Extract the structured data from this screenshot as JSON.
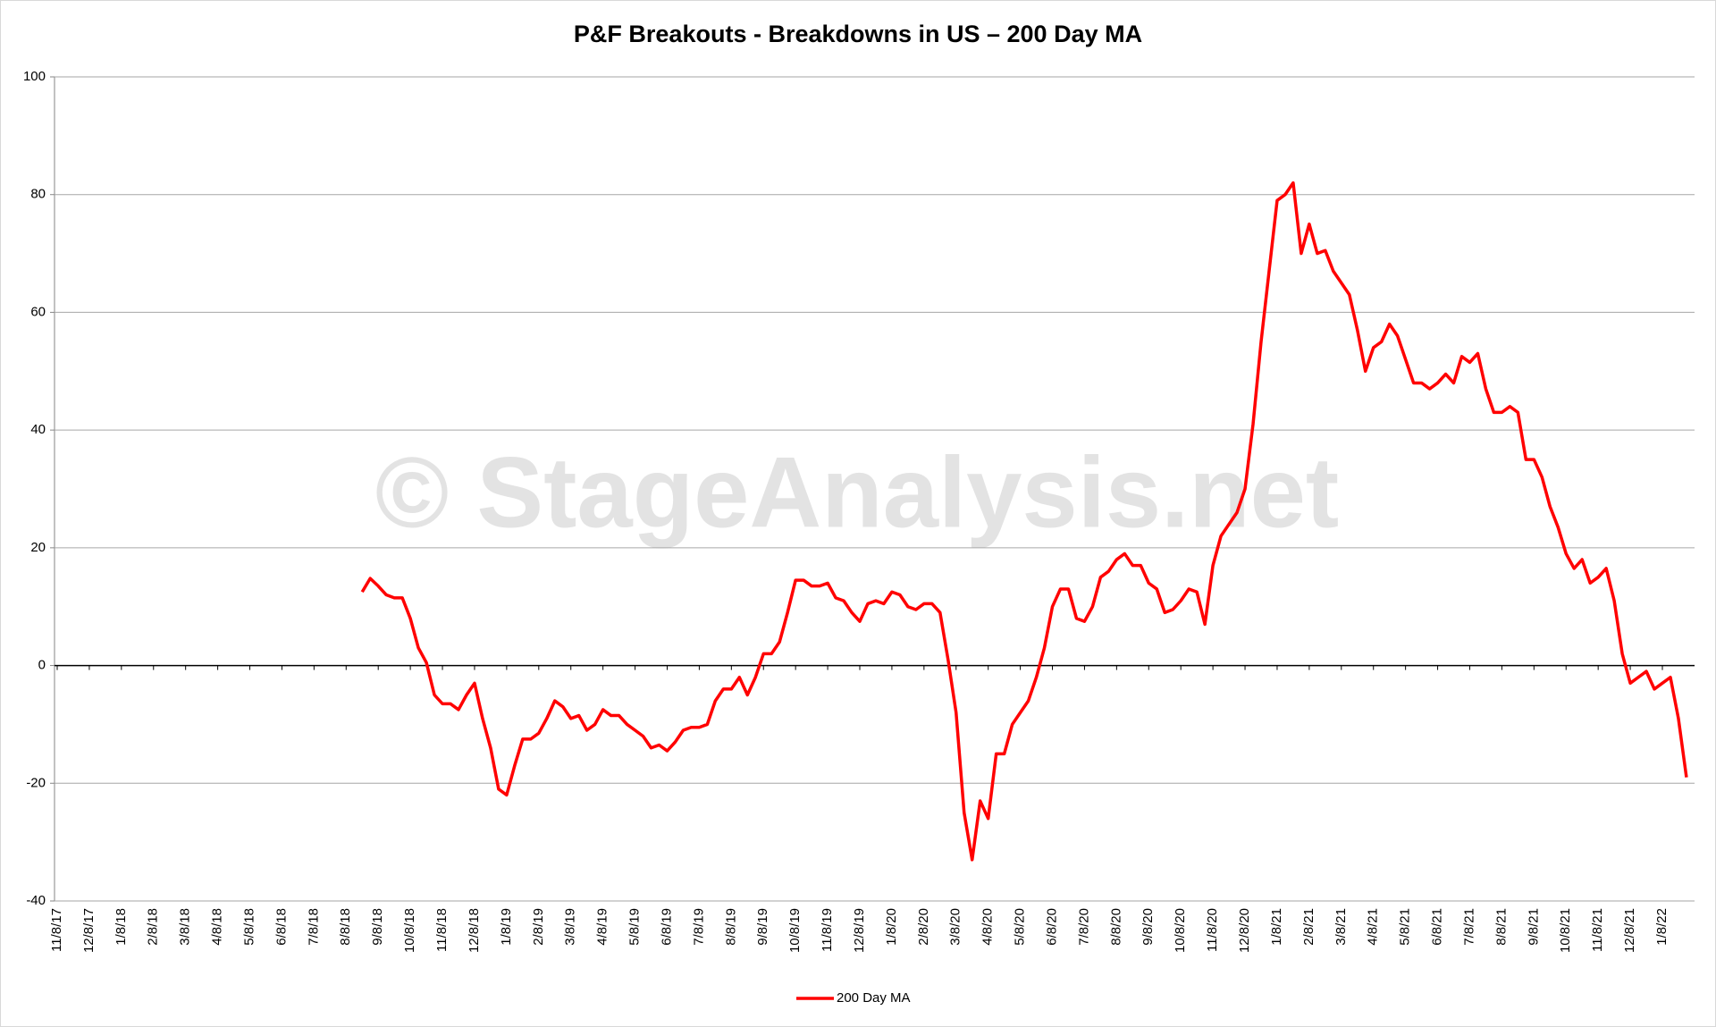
{
  "chart_data": {
    "type": "line",
    "title": "P&F Breakouts - Breakdowns in US – 200 Day MA",
    "watermark": "© StageAnalysis.net",
    "categories": [
      "11/8/17",
      null,
      null,
      null,
      "12/8/17",
      null,
      null,
      null,
      "1/8/18",
      null,
      null,
      null,
      "2/8/18",
      null,
      null,
      null,
      "3/8/18",
      null,
      null,
      null,
      "4/8/18",
      null,
      null,
      null,
      "5/8/18",
      null,
      null,
      null,
      "6/8/18",
      null,
      null,
      null,
      "7/8/18",
      null,
      null,
      null,
      "8/8/18",
      null,
      null,
      null,
      "9/8/18",
      null,
      null,
      null,
      "10/8/18",
      null,
      null,
      null,
      "11/8/18",
      null,
      null,
      null,
      "12/8/18",
      null,
      null,
      null,
      "1/8/19",
      null,
      null,
      null,
      "2/8/19",
      null,
      null,
      null,
      "3/8/19",
      null,
      null,
      null,
      "4/8/19",
      null,
      null,
      null,
      "5/8/19",
      null,
      null,
      null,
      "6/8/19",
      null,
      null,
      null,
      "7/8/19",
      null,
      null,
      null,
      "8/8/19",
      null,
      null,
      null,
      "9/8/19",
      null,
      null,
      null,
      "10/8/19",
      null,
      null,
      null,
      "11/8/19",
      null,
      null,
      null,
      "12/8/19",
      null,
      null,
      null,
      "1/8/20",
      null,
      null,
      null,
      "2/8/20",
      null,
      null,
      null,
      "3/8/20",
      null,
      null,
      null,
      "4/8/20",
      null,
      null,
      null,
      "5/8/20",
      null,
      null,
      null,
      "6/8/20",
      null,
      null,
      null,
      "7/8/20",
      null,
      null,
      null,
      "8/8/20",
      null,
      null,
      null,
      "9/8/20",
      null,
      null,
      null,
      "10/8/20",
      null,
      null,
      null,
      "11/8/20",
      null,
      null,
      null,
      "12/8/20",
      null,
      null,
      null,
      "1/8/21",
      null,
      null,
      null,
      "2/8/21",
      null,
      null,
      null,
      "3/8/21",
      null,
      null,
      null,
      "4/8/21",
      null,
      null,
      null,
      "5/8/21",
      null,
      null,
      null,
      "6/8/21",
      null,
      null,
      null,
      "7/8/21",
      null,
      null,
      null,
      "8/8/21",
      null,
      null,
      null,
      "9/8/21",
      null,
      null,
      null,
      "10/8/21",
      null,
      null,
      null,
      "11/8/21",
      null,
      null,
      null,
      "12/8/21",
      null,
      null,
      null,
      "1/8/22",
      null,
      null,
      null
    ],
    "series": [
      {
        "name": "200 Day MA",
        "color": "#ff0000",
        "values": [
          null,
          null,
          null,
          null,
          null,
          null,
          null,
          null,
          null,
          null,
          null,
          null,
          null,
          null,
          null,
          null,
          null,
          null,
          null,
          null,
          null,
          null,
          null,
          null,
          null,
          null,
          null,
          null,
          null,
          null,
          null,
          null,
          null,
          null,
          null,
          null,
          null,
          null,
          12.5,
          14.8,
          13.5,
          12,
          11.5,
          11.5,
          8,
          3,
          0.5,
          -5,
          -6.5,
          -6.5,
          -7.5,
          -5,
          -3,
          -9,
          -14,
          -21,
          -22,
          -17,
          -12.5,
          -12.5,
          -11.5,
          -9,
          -6,
          -7,
          -9,
          -8.5,
          -11,
          -10,
          -7.5,
          -8.5,
          -8.5,
          -10,
          -11,
          -12,
          -14,
          -13.5,
          -14.5,
          -13,
          -11,
          -10.5,
          -10.5,
          -10,
          -6,
          -4,
          -4,
          -2,
          -5,
          -2,
          2,
          2,
          4,
          9,
          14.5,
          14.5,
          13.5,
          13.5,
          14,
          11.5,
          11,
          9,
          7.5,
          10.5,
          11,
          10.5,
          12.5,
          12,
          10,
          9.5,
          10.5,
          10.5,
          9,
          1,
          -8,
          -25,
          -33,
          -23,
          -26,
          -15,
          -15,
          -10,
          -8,
          -6,
          -2,
          3,
          10,
          13,
          13,
          8,
          7.5,
          10,
          15,
          16,
          18,
          19,
          17,
          17,
          14,
          13,
          9,
          9.5,
          11,
          13,
          12.5,
          7,
          17,
          22,
          24,
          26,
          30,
          41,
          55,
          67,
          79,
          80,
          82,
          70,
          75,
          70,
          70.5,
          67,
          65,
          63,
          57,
          50,
          54,
          55,
          58,
          56,
          52,
          48,
          48,
          47,
          48,
          49.5,
          48,
          52.5,
          51.5,
          53,
          47,
          43,
          43,
          44,
          43,
          35,
          35,
          32,
          27,
          23.5,
          19,
          16.5,
          18,
          14,
          15,
          16.5,
          11,
          2,
          -3,
          -2,
          -1,
          -4,
          -3,
          -2,
          -9,
          -19
        ]
      }
    ],
    "ylim": [
      -40,
      100
    ],
    "yticks": [
      -40,
      -20,
      0,
      20,
      40,
      60,
      80,
      100
    ],
    "grid": true,
    "legend": "bottom"
  }
}
